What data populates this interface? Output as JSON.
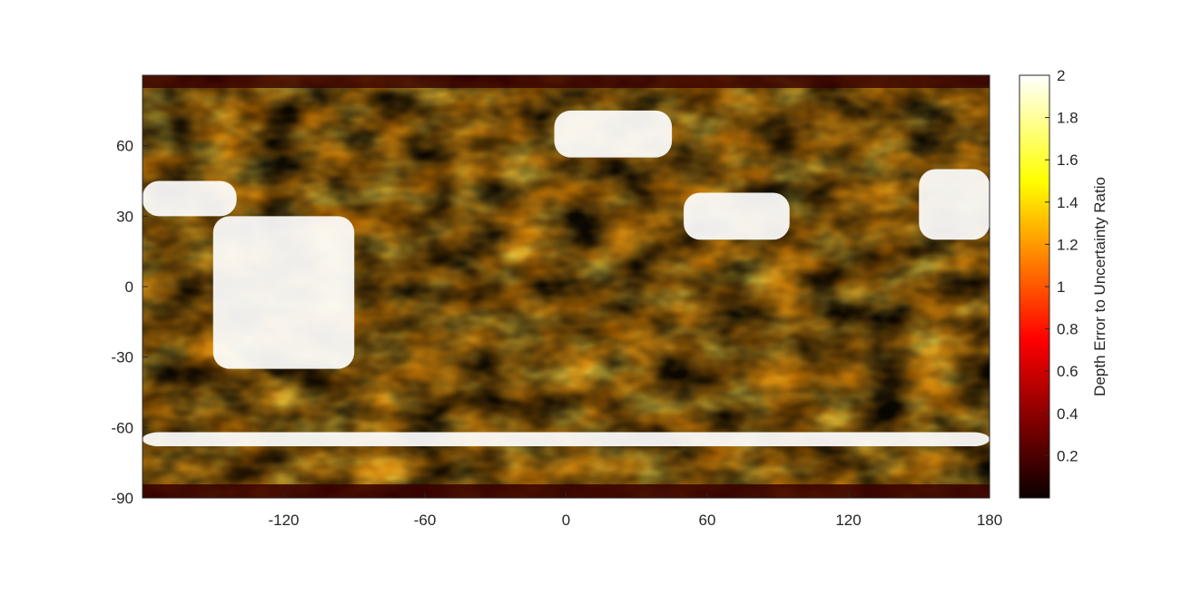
{
  "chart_data": {
    "type": "heatmap",
    "title": "",
    "xlabel": "",
    "ylabel": "",
    "xlim": [
      -180,
      180
    ],
    "ylim": [
      -90,
      90
    ],
    "x_ticks": [
      -120,
      -60,
      0,
      60,
      120,
      180
    ],
    "x_tick_labels": [
      "-120",
      "-60",
      "0",
      "60",
      "120",
      "180"
    ],
    "y_ticks": [
      60,
      30,
      0,
      -30,
      -60,
      -90
    ],
    "y_tick_labels": [
      "60",
      "30",
      "0",
      "-30",
      "-60",
      "-90"
    ],
    "colormap": "hot",
    "colorbar": {
      "label": "Depth Error to Uncertainty Ratio",
      "clim": [
        0,
        2
      ],
      "ticks": [
        0.2,
        0.4,
        0.6,
        0.8,
        1,
        1.2,
        1.4,
        1.6,
        1.8,
        2
      ],
      "tick_labels": [
        "0.2",
        "0.4",
        "0.6",
        "0.8",
        "1",
        "1.2",
        "1.4",
        "1.6",
        "1.8",
        "2"
      ],
      "position": "right"
    },
    "grid": false,
    "saturated_regions": [
      {
        "lon": [
          -150,
          -90
        ],
        "lat": [
          -35,
          30
        ],
        "value": 2
      },
      {
        "lon": [
          -180,
          -140
        ],
        "lat": [
          30,
          45
        ],
        "value": 2
      },
      {
        "lon": [
          -5,
          45
        ],
        "lat": [
          55,
          75
        ],
        "value": 2
      },
      {
        "lon": [
          50,
          95
        ],
        "lat": [
          20,
          40
        ],
        "value": 2
      },
      {
        "lon": [
          150,
          180
        ],
        "lat": [
          20,
          50
        ],
        "value": 2
      },
      {
        "lon": [
          -180,
          180
        ],
        "lat": [
          -68,
          -62
        ],
        "value": 2
      }
    ]
  }
}
